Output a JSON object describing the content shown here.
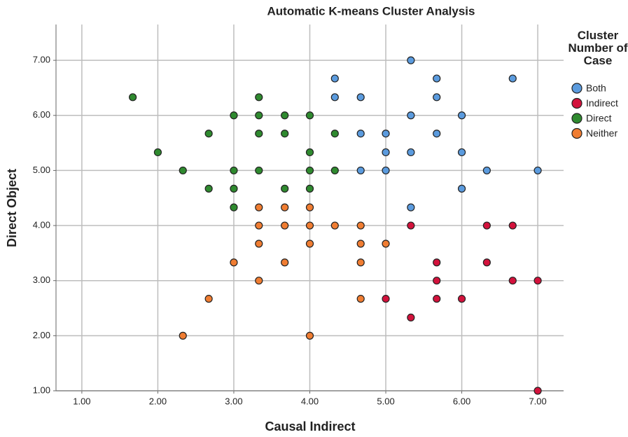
{
  "chart_data": {
    "type": "scatter",
    "title": "Automatic K-means Cluster Analysis",
    "x_label": "Causal Indirect",
    "y_label": "Direct Object",
    "legend_title": "Cluster Number of Case",
    "legend_position": "right",
    "grid": true,
    "xlim": [
      0.66,
      7.34
    ],
    "ylim": [
      1,
      7.65
    ],
    "xticks": [
      {
        "value": 1,
        "label": "1.00"
      },
      {
        "value": 2,
        "label": "2.00"
      },
      {
        "value": 3,
        "label": "3.00"
      },
      {
        "value": 4,
        "label": "4.00"
      },
      {
        "value": 5,
        "label": "5.00"
      },
      {
        "value": 6,
        "label": "6.00"
      },
      {
        "value": 7,
        "label": "7.00"
      }
    ],
    "yticks": [
      {
        "value": 1,
        "label": "1.00"
      },
      {
        "value": 2,
        "label": "2.00"
      },
      {
        "value": 3,
        "label": "3.00"
      },
      {
        "value": 4,
        "label": "4.00"
      },
      {
        "value": 5,
        "label": "5.00"
      },
      {
        "value": 6,
        "label": "6.00"
      },
      {
        "value": 7,
        "label": "7.00"
      }
    ],
    "series": [
      {
        "name": "Both",
        "color": "#5b9bde",
        "x": [
          5.33,
          4.33,
          5.67,
          6.67,
          4.33,
          4.67,
          5.67,
          5.33,
          6,
          4.67,
          5,
          5.67,
          5,
          5.33,
          6,
          4.67,
          5,
          6.33,
          7,
          6,
          5.33
        ],
        "values": [
          7,
          6.67,
          6.67,
          6.67,
          6.33,
          6.33,
          6.33,
          6,
          6,
          5.67,
          5.67,
          5.67,
          5.33,
          5.33,
          5.33,
          5,
          5,
          5,
          5,
          4.67,
          4.33
        ]
      },
      {
        "name": "Indirect",
        "color": "#d3123c",
        "x": [
          5.33,
          6.33,
          6.67,
          5.67,
          6.33,
          5.67,
          6.67,
          7,
          5,
          5.67,
          6,
          5.33,
          7
        ],
        "values": [
          4,
          4,
          4,
          3.33,
          3.33,
          3,
          3,
          3,
          2.67,
          2.67,
          2.67,
          2.33,
          1
        ]
      },
      {
        "name": "Direct",
        "color": "#2f8a2f",
        "x": [
          1.67,
          3.33,
          3,
          3.33,
          3.67,
          4,
          2.67,
          3.33,
          3.67,
          4.33,
          2,
          4,
          2.33,
          3,
          3.33,
          4,
          4.33,
          2.67,
          3,
          3.67,
          4,
          3
        ],
        "values": [
          6.33,
          6.33,
          6,
          6,
          6,
          6,
          5.67,
          5.67,
          5.67,
          5.67,
          5.33,
          5.33,
          5,
          5,
          5,
          5,
          5,
          4.67,
          4.67,
          4.67,
          4.67,
          4.33
        ]
      },
      {
        "name": "Neither",
        "color": "#f07d32",
        "x": [
          3.33,
          3.67,
          4,
          3.33,
          3.67,
          4,
          4.33,
          4.67,
          3.33,
          4,
          4.67,
          5,
          3,
          3.67,
          4.67,
          3.33,
          2.67,
          4.67,
          2.33,
          4
        ],
        "values": [
          4.33,
          4.33,
          4.33,
          4,
          4,
          4,
          4,
          4,
          3.67,
          3.67,
          3.67,
          3.67,
          3.33,
          3.33,
          3.33,
          3,
          2.67,
          2.67,
          2,
          2
        ]
      }
    ]
  }
}
